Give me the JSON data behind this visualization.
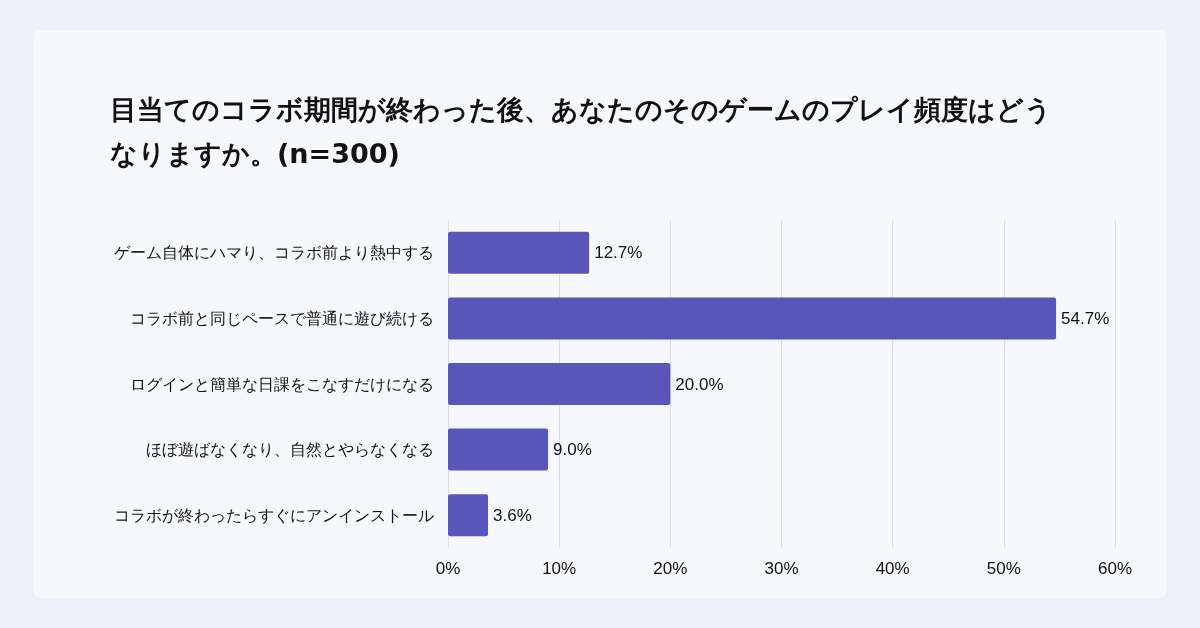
{
  "chart_data": {
    "type": "bar",
    "orientation": "horizontal",
    "title": "目当てのコラボ期間が終わった後、あなたのそのゲームのプレイ頻度はどうなりますか。(n=300)",
    "categories": [
      "ゲーム自体にハマり、コラボ前より熱中する",
      "コラボ前と同じペースで普通に遊び続ける",
      "ログインと簡単な日課をこなすだけになる",
      "ほぼ遊ばなくなり、自然とやらなくなる",
      "コラボが終わったらすぐにアンインストール"
    ],
    "values": [
      12.7,
      54.7,
      20.0,
      9.0,
      3.6
    ],
    "value_labels": [
      "12.7%",
      "54.7%",
      "20.0%",
      "9.0%",
      "3.6%"
    ],
    "color": "#5a55b8",
    "xlim": [
      0,
      60
    ],
    "xticks": [
      {
        "value": 0,
        "label": "0%"
      },
      {
        "value": 10,
        "label": "10%"
      },
      {
        "value": 20,
        "label": "20%"
      },
      {
        "value": 30,
        "label": "30%"
      },
      {
        "value": 40,
        "label": "40%"
      },
      {
        "value": 50,
        "label": "50%"
      },
      {
        "value": 60,
        "label": "60%"
      }
    ],
    "grid": "x"
  }
}
